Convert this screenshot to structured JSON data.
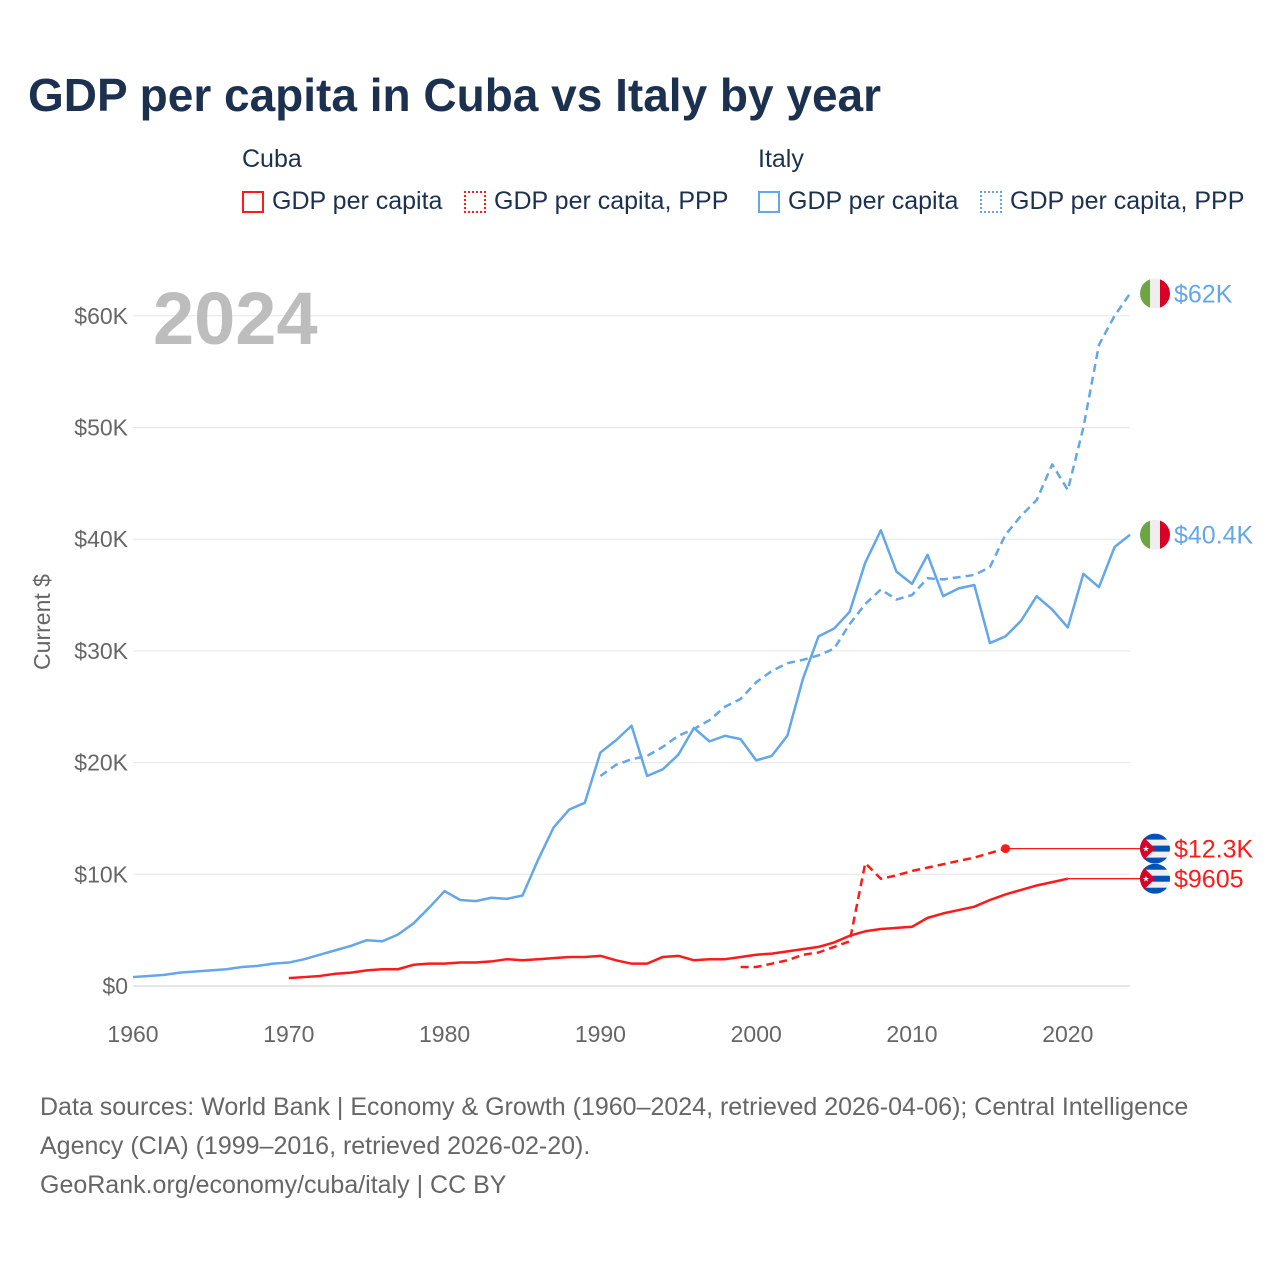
{
  "chart_data": {
    "type": "line",
    "title": "GDP per capita in Cuba vs Italy by year",
    "year_badge": "2024",
    "ylabel": "Current $",
    "xlabel": "",
    "xlim": [
      1960,
      2024
    ],
    "ylim": [
      0,
      62000
    ],
    "x_ticks": [
      "1960",
      "1970",
      "1980",
      "1990",
      "2000",
      "2010",
      "2020"
    ],
    "x_tick_values": [
      1960,
      1970,
      1980,
      1990,
      2000,
      2010,
      2020
    ],
    "y_ticks": [
      "$0",
      "$10K",
      "$20K",
      "$30K",
      "$40K",
      "$50K",
      "$60K"
    ],
    "y_tick_values": [
      0,
      10000,
      20000,
      30000,
      40000,
      50000,
      60000
    ],
    "grid": true,
    "legend": {
      "groups": [
        {
          "label": "Cuba",
          "items": [
            "GDP per capita",
            "GDP per capita, PPP"
          ]
        },
        {
          "label": "Italy",
          "items": [
            "GDP per capita",
            "GDP per capita, PPP"
          ]
        }
      ],
      "placement": "top"
    },
    "colors": {
      "cuba": "#ff1a1a",
      "italy": "#63a7ea"
    },
    "series": [
      {
        "name": "Cuba GDP per capita",
        "country": "cuba",
        "dashed": false,
        "start": 1970,
        "end_label": "$9605",
        "values": [
          700,
          800,
          900,
          1100,
          1200,
          1400,
          1500,
          1500,
          1900,
          2000,
          2000,
          2100,
          2100,
          2200,
          2400,
          2300,
          2400,
          2500,
          2600,
          2600,
          2700,
          2300,
          2000,
          2000,
          2600,
          2700,
          2300,
          2400,
          2400,
          2600,
          2800,
          2900,
          3100,
          3300,
          3500,
          3900,
          4500,
          4900,
          5100,
          5200,
          5300,
          6100,
          6500,
          6800,
          7100,
          7700,
          8200,
          8600,
          9000,
          9300,
          9605
        ]
      },
      {
        "name": "Cuba GDP per capita, PPP",
        "country": "cuba",
        "dashed": true,
        "start": 1999,
        "end_label": "$12.3K",
        "end_dot": true,
        "values": [
          1700,
          1700,
          2000,
          2300,
          2800,
          3000,
          3500,
          4000,
          11000,
          9600,
          9900,
          10300,
          10600,
          10900,
          11200,
          11500,
          11900,
          12300
        ]
      },
      {
        "name": "Italy GDP per capita",
        "country": "italy",
        "dashed": false,
        "start": 1960,
        "end_label": "$40.4K",
        "values": [
          800,
          900,
          1000,
          1200,
          1300,
          1400,
          1500,
          1700,
          1800,
          2000,
          2100,
          2400,
          2800,
          3200,
          3600,
          4100,
          4000,
          4600,
          5600,
          7000,
          8500,
          7700,
          7600,
          7900,
          7800,
          8100,
          11300,
          14200,
          15800,
          16400,
          20900,
          22000,
          23300,
          18800,
          19400,
          20700,
          23100,
          21900,
          22400,
          22100,
          20200,
          20600,
          22400,
          27500,
          31300,
          32000,
          33500,
          37900,
          40800,
          37100,
          36000,
          38600,
          34900,
          35600,
          35900,
          30700,
          31300,
          32700,
          34900,
          33700,
          32100,
          36900,
          35700,
          39300,
          40400
        ]
      },
      {
        "name": "Italy GDP per capita, PPP",
        "country": "italy",
        "dashed": true,
        "start": 1990,
        "end_label": "$62K",
        "values": [
          18800,
          19800,
          20300,
          20600,
          21400,
          22400,
          23000,
          23800,
          25000,
          25700,
          27200,
          28200,
          28900,
          29200,
          29600,
          30200,
          32400,
          34200,
          35500,
          34600,
          35000,
          36500,
          36400,
          36600,
          36800,
          37500,
          40400,
          42100,
          43500,
          46700,
          44400,
          50000,
          57400,
          60000,
          62000
        ]
      }
    ]
  },
  "footer": {
    "sources": "Data sources: World Bank | Economy & Growth (1960–2024, retrieved 2026-04-06); Central Intelligence Agency (CIA) (1999–2016, retrieved 2026-02-20).",
    "credit": "GeoRank.org/economy/cuba/italy | CC BY"
  }
}
